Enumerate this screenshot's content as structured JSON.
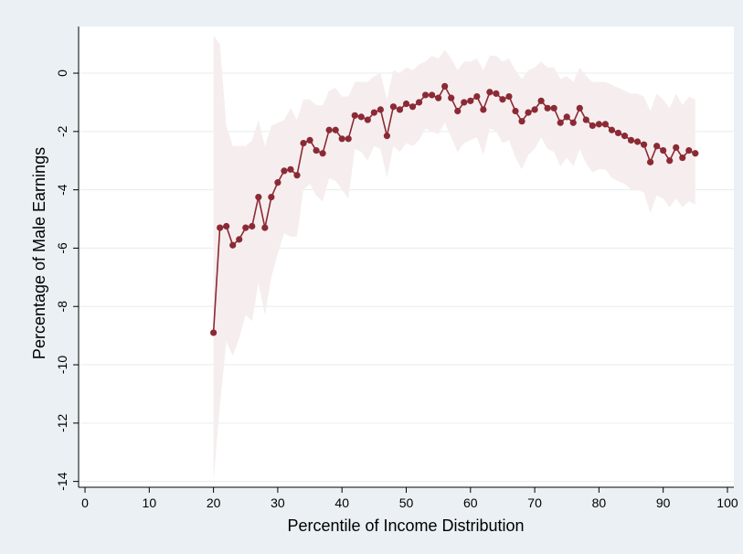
{
  "chart_data": {
    "type": "line",
    "xlabel": "Percentile of Income Distribution",
    "ylabel": "Percentage of Male Earnings",
    "xlim": [
      -1,
      101
    ],
    "ylim": [
      -14.2,
      1.6
    ],
    "xticks": [
      0,
      10,
      20,
      30,
      40,
      50,
      60,
      70,
      80,
      90,
      100
    ],
    "yticks": [
      0,
      -2,
      -4,
      -6,
      -8,
      -10,
      -12,
      -14
    ],
    "grid": "horizontal",
    "legend": "none",
    "colors": {
      "line": "#8b2a35",
      "band": "#f6eeee",
      "plot_bg": "#ffffff",
      "page_bg": "#eaf0f4",
      "grid": "#e7ecef"
    },
    "series": [
      {
        "x": [
          20,
          21,
          22,
          23,
          24,
          25,
          26,
          27,
          28,
          29,
          30,
          31,
          32,
          33,
          34,
          35,
          36,
          37,
          38,
          39,
          40,
          41,
          42,
          43,
          44,
          45,
          46,
          47,
          48,
          49,
          50,
          51,
          52,
          53,
          54,
          55,
          56,
          57,
          58,
          59,
          60,
          61,
          62,
          63,
          64,
          65,
          66,
          67,
          68,
          69,
          70,
          71,
          72,
          73,
          74,
          75,
          76,
          77,
          78,
          79,
          80,
          81,
          82,
          83,
          84,
          85,
          86,
          87,
          88,
          89,
          90,
          91,
          92,
          93,
          94,
          95
        ],
        "values": [
          -8.9,
          -5.3,
          -5.25,
          -5.9,
          -5.7,
          -5.3,
          -5.25,
          -4.25,
          -5.3,
          -4.25,
          -3.75,
          -3.35,
          -3.3,
          -3.5,
          -2.4,
          -2.3,
          -2.65,
          -2.75,
          -1.95,
          -1.95,
          -2.25,
          -2.25,
          -1.45,
          -1.5,
          -1.6,
          -1.35,
          -1.25,
          -2.15,
          -1.15,
          -1.25,
          -1.05,
          -1.15,
          -1.0,
          -0.75,
          -0.75,
          -0.85,
          -0.45,
          -0.85,
          -1.3,
          -1.0,
          -0.95,
          -0.8,
          -1.25,
          -0.65,
          -0.7,
          -0.9,
          -0.8,
          -1.3,
          -1.65,
          -1.35,
          -1.25,
          -0.95,
          -1.2,
          -1.2,
          -1.7,
          -1.5,
          -1.7,
          -1.2,
          -1.6,
          -1.8,
          -1.75,
          -1.75,
          -1.95,
          -2.05,
          -2.15,
          -2.3,
          -2.35,
          -2.45,
          -3.05,
          -2.5,
          -2.65,
          -3.0,
          -2.55,
          -2.9,
          -2.65,
          -2.75
        ],
        "ci_upper": [
          1.3,
          1.0,
          -1.8,
          -2.5,
          -2.5,
          -2.5,
          -2.3,
          -1.6,
          -2.5,
          -1.8,
          -1.7,
          -1.6,
          -1.2,
          -1.6,
          -0.9,
          -0.9,
          -1.1,
          -1.1,
          -0.6,
          -0.5,
          -0.8,
          -0.8,
          -0.3,
          -0.3,
          -0.3,
          -0.1,
          0.0,
          -0.9,
          0.1,
          0.0,
          0.2,
          0.1,
          0.3,
          0.4,
          0.6,
          0.5,
          0.8,
          0.5,
          0.1,
          0.4,
          0.4,
          0.5,
          0.1,
          0.6,
          0.6,
          0.4,
          0.5,
          0.1,
          -0.2,
          0.1,
          0.2,
          0.4,
          0.2,
          0.2,
          -0.2,
          -0.1,
          -0.3,
          0.2,
          -0.1,
          -0.3,
          -0.3,
          -0.3,
          -0.4,
          -0.5,
          -0.6,
          -0.7,
          -0.7,
          -0.8,
          -1.3,
          -0.7,
          -0.9,
          -1.2,
          -0.7,
          -1.1,
          -0.8,
          -0.9
        ],
        "ci_lower": [
          -14.0,
          -11.4,
          -9.2,
          -9.7,
          -9.1,
          -8.3,
          -8.5,
          -7.2,
          -8.3,
          -7.0,
          -6.2,
          -5.5,
          -5.6,
          -5.6,
          -4.0,
          -3.8,
          -4.2,
          -4.4,
          -3.6,
          -3.7,
          -4.0,
          -4.3,
          -2.6,
          -2.7,
          -3.0,
          -2.5,
          -2.6,
          -3.6,
          -2.5,
          -2.7,
          -2.4,
          -2.5,
          -2.3,
          -1.9,
          -2.0,
          -2.1,
          -1.7,
          -2.2,
          -2.7,
          -2.4,
          -2.3,
          -2.2,
          -2.8,
          -1.9,
          -2.0,
          -2.4,
          -2.3,
          -2.9,
          -3.3,
          -2.8,
          -2.6,
          -2.2,
          -2.6,
          -2.7,
          -3.2,
          -2.9,
          -3.2,
          -2.6,
          -3.1,
          -3.4,
          -3.3,
          -3.3,
          -3.6,
          -3.7,
          -3.8,
          -4.0,
          -4.0,
          -4.1,
          -4.8,
          -4.2,
          -4.3,
          -4.6,
          -4.3,
          -4.6,
          -4.4,
          -4.5
        ]
      }
    ]
  }
}
